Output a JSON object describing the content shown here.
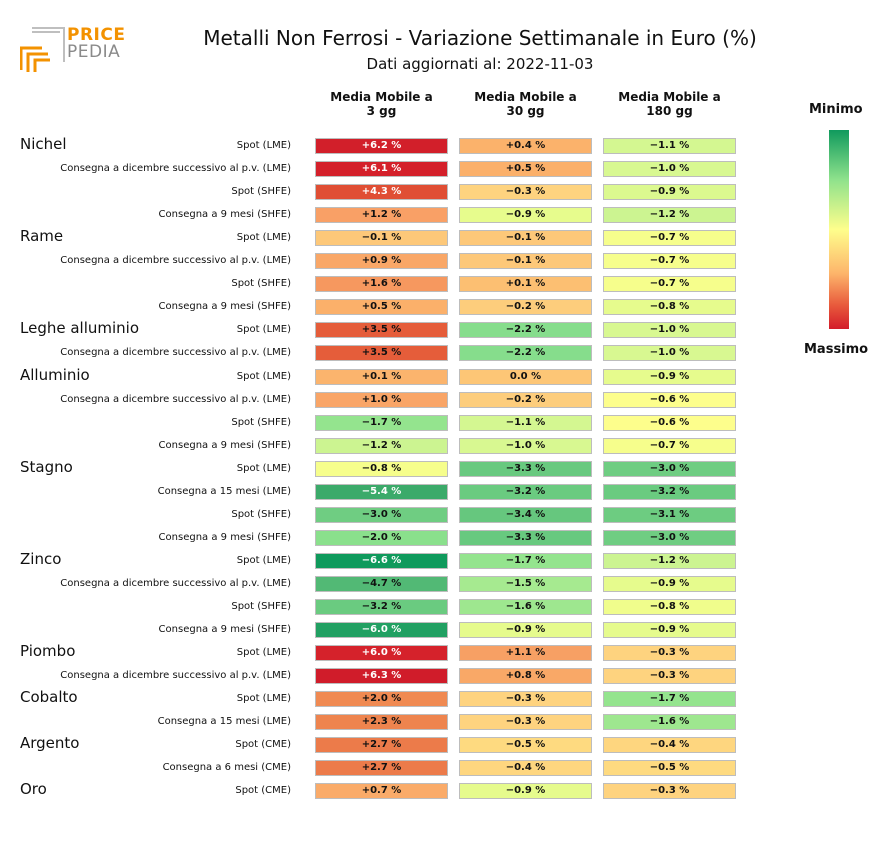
{
  "logo": {
    "word1": "PRICE",
    "word2": "PEDIA"
  },
  "title": "Metalli Non Ferrosi - Variazione Settimanale in Euro (%)",
  "subtitle": "Dati aggiornati al: 2022-11-03",
  "columns": [
    "Media Mobile a\n3 gg",
    "Media Mobile a\n30 gg",
    "Media Mobile a\n180 gg"
  ],
  "legend": {
    "min_label": "Minimo",
    "max_label": "Massimo"
  },
  "groups": [
    {
      "name": "Nichel",
      "row": 0
    },
    {
      "name": "Rame",
      "row": 4
    },
    {
      "name": "Leghe alluminio",
      "row": 8
    },
    {
      "name": "Alluminio",
      "row": 10
    },
    {
      "name": "Stagno",
      "row": 14
    },
    {
      "name": "Zinco",
      "row": 18
    },
    {
      "name": "Piombo",
      "row": 22
    },
    {
      "name": "Cobalto",
      "row": 24
    },
    {
      "name": "Argento",
      "row": 26
    },
    {
      "name": "Oro",
      "row": 28
    }
  ],
  "chart_data": {
    "type": "table",
    "title": "Metalli Non Ferrosi - Variazione Settimanale in Euro (%)",
    "columns": [
      "Media Mobile a 3 gg",
      "Media Mobile a 30 gg",
      "Media Mobile a 180 gg"
    ],
    "rows": [
      {
        "label": "Spot (LME)",
        "texts": [
          "+6.2 %",
          "+0.4 %",
          "−1.1 %"
        ],
        "colors": [
          "#d21f2a",
          "#fbb26b",
          "#d4f791"
        ]
      },
      {
        "label": "Consegna a dicembre successivo al p.v. (LME)",
        "texts": [
          "+6.1 %",
          "+0.5 %",
          "−1.0 %"
        ],
        "colors": [
          "#d4202a",
          "#fbb06a",
          "#d8f891"
        ]
      },
      {
        "label": "Spot (SHFE)",
        "texts": [
          "+4.3 %",
          "−0.3 %",
          "−0.9 %"
        ],
        "colors": [
          "#e04e34",
          "#fed37f",
          "#dcf98f"
        ]
      },
      {
        "label": "Consegna a 9 mesi (SHFE)",
        "texts": [
          "+1.2 %",
          "−0.9 %",
          "−1.2 %"
        ],
        "colors": [
          "#f9a066",
          "#e7fc8d",
          "#ccf491"
        ]
      },
      {
        "label": "Spot (LME)",
        "texts": [
          "−0.1 %",
          "−0.1 %",
          "−0.7 %"
        ],
        "colors": [
          "#fdc879",
          "#fdc879",
          "#f6fe8c"
        ]
      },
      {
        "label": "Consegna a dicembre successivo al p.v. (LME)",
        "texts": [
          "+0.9 %",
          "−0.1 %",
          "−0.7 %"
        ],
        "colors": [
          "#f9a767",
          "#fdc879",
          "#f6fe8c"
        ]
      },
      {
        "label": "Spot (SHFE)",
        "texts": [
          "+1.6 %",
          "+0.1 %",
          "−0.7 %"
        ],
        "colors": [
          "#f6985f",
          "#fcbf72",
          "#f6fe8c"
        ]
      },
      {
        "label": "Consegna a 9 mesi (SHFE)",
        "texts": [
          "+0.5 %",
          "−0.2 %",
          "−0.8 %"
        ],
        "colors": [
          "#fbb06a",
          "#fdcd7c",
          "#e6fb8d"
        ]
      },
      {
        "label": "Spot (LME)",
        "texts": [
          "+3.5 %",
          "−2.2 %",
          "−1.0 %"
        ],
        "colors": [
          "#e55d3a",
          "#86dd8c",
          "#d8f891"
        ]
      },
      {
        "label": "Consegna a dicembre successivo al p.v. (LME)",
        "texts": [
          "+3.5 %",
          "−2.2 %",
          "−1.0 %"
        ],
        "colors": [
          "#e55d3a",
          "#86dd8c",
          "#d8f891"
        ]
      },
      {
        "label": "Spot (LME)",
        "texts": [
          "+0.1 %",
          "0.0 %",
          "−0.9 %"
        ],
        "colors": [
          "#fbb46d",
          "#fdc676",
          "#e6fb8d"
        ]
      },
      {
        "label": "Consegna a dicembre successivo al p.v. (LME)",
        "texts": [
          "+1.0 %",
          "−0.2 %",
          "−0.6 %"
        ],
        "colors": [
          "#f9a567",
          "#fdcd7c",
          "#fdfe8c"
        ]
      },
      {
        "label": "Spot (SHFE)",
        "texts": [
          "−1.7 %",
          "−1.1 %",
          "−0.6 %"
        ],
        "colors": [
          "#94e48e",
          "#d4f791",
          "#fdfe8c"
        ]
      },
      {
        "label": "Consegna a 9 mesi (SHFE)",
        "texts": [
          "−1.2 %",
          "−1.0 %",
          "−0.7 %"
        ],
        "colors": [
          "#ccf491",
          "#d8f891",
          "#f6fe8c"
        ]
      },
      {
        "label": "Spot (LME)",
        "texts": [
          "−0.8 %",
          "−3.3 %",
          "−3.0 %"
        ],
        "colors": [
          "#f6fe8c",
          "#68c97f",
          "#6fcd82"
        ]
      },
      {
        "label": "Consegna a 15 mesi (LME)",
        "texts": [
          "−5.4 %",
          "−3.2 %",
          "−3.2 %"
        ],
        "colors": [
          "#3baa6a",
          "#6acb80",
          "#6acb80"
        ]
      },
      {
        "label": "Spot (SHFE)",
        "texts": [
          "−3.0 %",
          "−3.4 %",
          "−3.1 %"
        ],
        "colors": [
          "#6fcd82",
          "#66c77e",
          "#6dcc81"
        ]
      },
      {
        "label": "Consegna a 9 mesi (SHFE)",
        "texts": [
          "−2.0 %",
          "−3.3 %",
          "−3.0 %"
        ],
        "colors": [
          "#8ae08c",
          "#68c97f",
          "#6fcd82"
        ]
      },
      {
        "label": "Spot (LME)",
        "texts": [
          "−6.6 %",
          "−1.7 %",
          "−1.2 %"
        ],
        "colors": [
          "#0f9a5c",
          "#94e48e",
          "#ccf491"
        ]
      },
      {
        "label": "Consegna a dicembre successivo al p.v. (LME)",
        "texts": [
          "−4.7 %",
          "−1.5 %",
          "−0.9 %"
        ],
        "colors": [
          "#52b975",
          "#a6ea90",
          "#e6fb8d"
        ]
      },
      {
        "label": "Spot (SHFE)",
        "texts": [
          "−3.2 %",
          "−1.6 %",
          "−0.8 %"
        ],
        "colors": [
          "#6acb80",
          "#9ee78f",
          "#f0fd8c"
        ]
      },
      {
        "label": "Consegna a 9 mesi (SHFE)",
        "texts": [
          "−6.0 %",
          "−0.9 %",
          "−0.9 %"
        ],
        "colors": [
          "#21a062",
          "#e6fb8d",
          "#e6fb8d"
        ]
      },
      {
        "label": "Spot (LME)",
        "texts": [
          "+6.0 %",
          "+1.1 %",
          "−0.3 %"
        ],
        "colors": [
          "#d5222b",
          "#f7a064",
          "#fed37f"
        ]
      },
      {
        "label": "Consegna a dicembre successivo al p.v. (LME)",
        "texts": [
          "+6.3 %",
          "+0.8 %",
          "−0.3 %"
        ],
        "colors": [
          "#d01c2a",
          "#f9a867",
          "#fed37f"
        ]
      },
      {
        "label": "Spot (LME)",
        "texts": [
          "+2.0 %",
          "−0.3 %",
          "−1.7 %"
        ],
        "colors": [
          "#f08a52",
          "#fed37f",
          "#94e48e"
        ]
      },
      {
        "label": "Consegna a 15 mesi (LME)",
        "texts": [
          "+2.3 %",
          "−0.3 %",
          "−1.6 %"
        ],
        "colors": [
          "#ee844e",
          "#fed37f",
          "#9ee78f"
        ]
      },
      {
        "label": "Spot (CME)",
        "texts": [
          "+2.7 %",
          "−0.5 %",
          "−0.4 %"
        ],
        "colors": [
          "#ec7b4a",
          "#feda80",
          "#fed67f"
        ]
      },
      {
        "label": "Consegna a 6 mesi (CME)",
        "texts": [
          "+2.7 %",
          "−0.4 %",
          "−0.5 %"
        ],
        "colors": [
          "#ec7b4a",
          "#fed67f",
          "#feda80"
        ]
      },
      {
        "label": "Spot (CME)",
        "texts": [
          "+0.7 %",
          "−0.9 %",
          "−0.3 %"
        ],
        "colors": [
          "#faab69",
          "#e6fb8d",
          "#fed37f"
        ]
      }
    ]
  }
}
